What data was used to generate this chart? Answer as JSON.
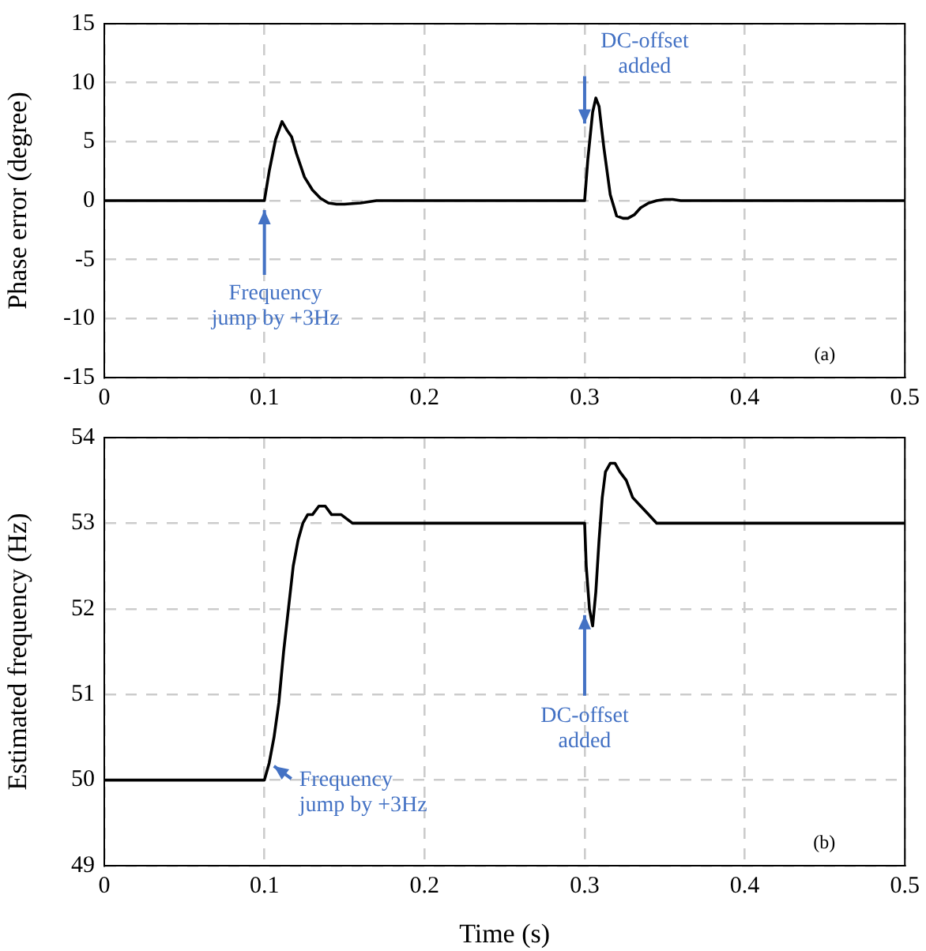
{
  "chart_data": [
    {
      "type": "line",
      "ylabel": "Phase error (degree)",
      "xlim": [
        0,
        0.5
      ],
      "ylim": [
        -15,
        15
      ],
      "xticks": [
        0,
        0.1,
        0.2,
        0.3,
        0.4,
        0.5
      ],
      "yticks": [
        -15,
        -10,
        -5,
        0,
        5,
        10,
        15
      ],
      "grid": true,
      "series": [
        {
          "color": "#000000",
          "x": [
            0,
            0.1,
            0.103,
            0.107,
            0.111,
            0.114,
            0.117,
            0.12,
            0.125,
            0.13,
            0.135,
            0.14,
            0.145,
            0.15,
            0.16,
            0.17,
            0.18,
            0.3,
            0.302,
            0.305,
            0.307,
            0.309,
            0.312,
            0.316,
            0.32,
            0.324,
            0.327,
            0.331,
            0.335,
            0.34,
            0.345,
            0.35,
            0.355,
            0.36,
            0.37,
            0.38,
            0.5
          ],
          "values": [
            0,
            0,
            2.5,
            5.2,
            6.7,
            6,
            5.4,
            4,
            2,
            0.9,
            0.2,
            -0.2,
            -0.3,
            -0.3,
            -0.2,
            0,
            0,
            0,
            3.5,
            7.5,
            8.7,
            8,
            4.5,
            0.5,
            -1.3,
            -1.5,
            -1.5,
            -1.2,
            -0.6,
            -0.2,
            0,
            0.1,
            0.1,
            0,
            0,
            0,
            0
          ]
        }
      ],
      "annotations": [
        {
          "text": "Frequency\njump by +3Hz",
          "x": 0.1,
          "y": 0
        },
        {
          "text": "DC-offset\nadded",
          "x": 0.3,
          "y": 6
        },
        "(a)"
      ]
    },
    {
      "type": "line",
      "xlabel": "Time (s)",
      "ylabel": "Estimated frequency (Hz)",
      "xlim": [
        0,
        0.5
      ],
      "ylim": [
        49,
        54
      ],
      "xticks": [
        0,
        0.1,
        0.2,
        0.3,
        0.4,
        0.5
      ],
      "yticks": [
        49,
        50,
        51,
        52,
        53,
        54
      ],
      "grid": true,
      "series": [
        {
          "color": "#000000",
          "x": [
            0,
            0.1,
            0.103,
            0.106,
            0.109,
            0.112,
            0.115,
            0.118,
            0.121,
            0.124,
            0.127,
            0.13,
            0.134,
            0.138,
            0.142,
            0.148,
            0.155,
            0.165,
            0.175,
            0.3,
            0.301,
            0.303,
            0.305,
            0.307,
            0.309,
            0.311,
            0.313,
            0.316,
            0.319,
            0.322,
            0.326,
            0.33,
            0.335,
            0.34,
            0.345,
            0.35,
            0.355,
            0.36,
            0.37,
            0.38,
            0.5
          ],
          "values": [
            50,
            50,
            50.2,
            50.5,
            50.9,
            51.5,
            52,
            52.5,
            52.8,
            53,
            53.1,
            53.1,
            53.2,
            53.2,
            53.1,
            53.1,
            53,
            53,
            53,
            53,
            52.5,
            52,
            51.8,
            52.2,
            52.8,
            53.3,
            53.6,
            53.7,
            53.7,
            53.6,
            53.5,
            53.3,
            53.2,
            53.1,
            53,
            53,
            53,
            53,
            53,
            53,
            53
          ]
        }
      ],
      "annotations": [
        {
          "text": "Frequency\njump by +3Hz",
          "x": 0.104,
          "y": 50.2
        },
        {
          "text": "DC-offset\nadded",
          "x": 0.3,
          "y": 52
        },
        "(b)"
      ]
    }
  ]
}
